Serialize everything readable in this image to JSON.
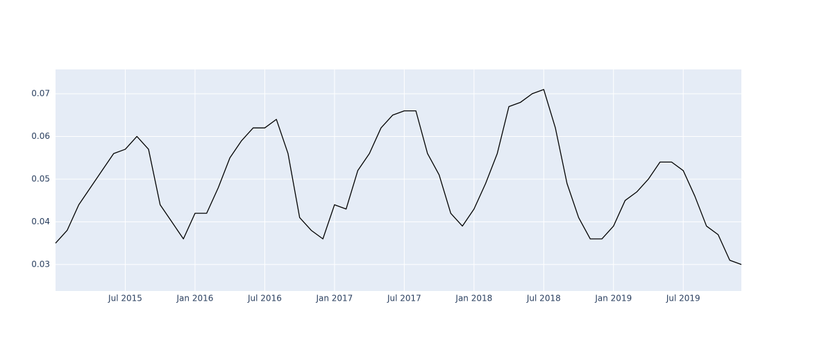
{
  "chart_data": {
    "type": "line",
    "x": [
      "2015-01",
      "2015-02",
      "2015-03",
      "2015-04",
      "2015-05",
      "2015-06",
      "2015-07",
      "2015-08",
      "2015-09",
      "2015-10",
      "2015-11",
      "2015-12",
      "2016-01",
      "2016-02",
      "2016-03",
      "2016-04",
      "2016-05",
      "2016-06",
      "2016-07",
      "2016-08",
      "2016-09",
      "2016-10",
      "2016-11",
      "2016-12",
      "2017-01",
      "2017-02",
      "2017-03",
      "2017-04",
      "2017-05",
      "2017-06",
      "2017-07",
      "2017-08",
      "2017-09",
      "2017-10",
      "2017-11",
      "2017-12",
      "2018-01",
      "2018-02",
      "2018-03",
      "2018-04",
      "2018-05",
      "2018-06",
      "2018-07",
      "2018-08",
      "2018-09",
      "2018-10",
      "2018-11",
      "2018-12",
      "2019-01",
      "2019-02",
      "2019-03",
      "2019-04",
      "2019-05",
      "2019-06",
      "2019-07",
      "2019-08",
      "2019-09",
      "2019-10",
      "2019-11",
      "2019-12"
    ],
    "series": [
      {
        "color": "#000000",
        "values": [
          0.035,
          0.038,
          0.044,
          0.048,
          0.052,
          0.056,
          0.057,
          0.06,
          0.057,
          0.044,
          0.04,
          0.036,
          0.042,
          0.042,
          0.048,
          0.055,
          0.059,
          0.062,
          0.062,
          0.064,
          0.056,
          0.041,
          0.038,
          0.036,
          0.044,
          0.043,
          0.052,
          0.056,
          0.062,
          0.065,
          0.066,
          0.066,
          0.056,
          0.051,
          0.042,
          0.039,
          0.043,
          0.049,
          0.056,
          0.067,
          0.068,
          0.07,
          0.071,
          0.062,
          0.049,
          0.041,
          0.036,
          0.036,
          0.039,
          0.045,
          0.047,
          0.05,
          0.054,
          0.054,
          0.052,
          0.046,
          0.039,
          0.037,
          0.031,
          0.03
        ]
      }
    ],
    "xlim": [
      "2015-01",
      "2019-12"
    ],
    "xticks": [
      {
        "value": "2015-07",
        "label": "Jul 2015"
      },
      {
        "value": "2016-01",
        "label": "Jan 2016"
      },
      {
        "value": "2016-07",
        "label": "Jul 2016"
      },
      {
        "value": "2017-01",
        "label": "Jan 2017"
      },
      {
        "value": "2017-07",
        "label": "Jul 2017"
      },
      {
        "value": "2018-01",
        "label": "Jan 2018"
      },
      {
        "value": "2018-07",
        "label": "Jul 2018"
      },
      {
        "value": "2019-01",
        "label": "Jan 2019"
      },
      {
        "value": "2019-07",
        "label": "Jul 2019"
      }
    ],
    "ylim": [
      0.0238,
      0.0757
    ],
    "yticks": [
      0.03,
      0.04,
      0.05,
      0.06,
      0.07
    ],
    "grid": true
  }
}
